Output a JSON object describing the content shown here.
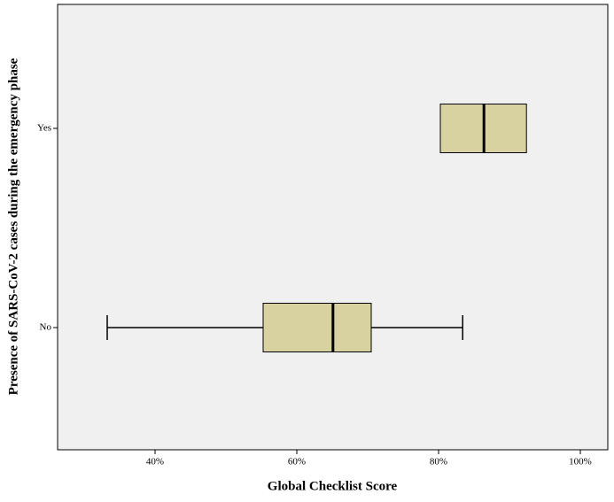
{
  "chart_data": {
    "type": "boxplot",
    "xlabel": "Global Checklist Score",
    "ylabel": "Presence of SARS-CoV-2 cases during the emergency phase",
    "categories": [
      "Yes",
      "No"
    ],
    "boxes": [
      {
        "min": 80.25,
        "q1": 80.25,
        "median": 86.4,
        "q3": 92.4,
        "max": 92.4
      },
      {
        "min": 33.25,
        "q1": 55.25,
        "median": 65.1,
        "q3": 70.5,
        "max": 83.4
      }
    ],
    "color": "#d8d2a0",
    "xlim": [
      26.25,
      103.875
    ],
    "xticks": [
      {
        "value": 40,
        "label": "40%"
      },
      {
        "value": 60,
        "label": "60%"
      },
      {
        "value": 80,
        "label": "80%"
      },
      {
        "value": 100,
        "label": "100%"
      }
    ]
  }
}
